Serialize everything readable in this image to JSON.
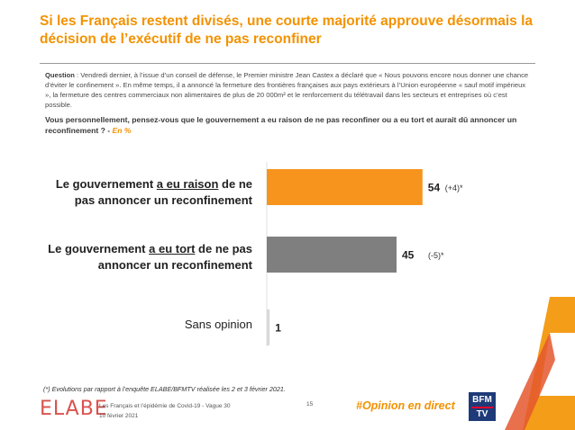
{
  "header": {
    "title": "Si les Français restent divisés, une courte majorité approuve désormais la décision de l’exécutif de ne pas reconfiner"
  },
  "question": {
    "label": "Question",
    "text": " : Vendredi dernier, à l’issue d’un conseil de défense, le Premier ministre Jean Castex a déclaré que « Nous pouvons encore nous donner une chance d’éviter le confinement ». En même temps, il a annoncé la fermeture des frontières françaises aux pays extérieurs à l’Union européenne « sauf motif impérieux », la fermeture des centres commerciaux non alimentaires de plus de 20 000m² et le renforcement du télétravail dans les secteurs et entreprises où c’est possible.",
    "prompt": "Vous personnellement, pensez-vous que le gouvernement a eu raison de ne pas reconfiner ou a eu tort et aurait dû annoncer un reconfinement ? - ",
    "unit": "En %"
  },
  "chart_data": {
    "type": "bar",
    "orientation": "horizontal",
    "categories": [
      "Le gouvernement a eu raison de ne pas annoncer un reconfinement",
      "Le gouvernement a eu tort de ne pas annoncer un reconfinement",
      "Sans opinion"
    ],
    "category_parts": [
      {
        "pre": "Le gouvernement ",
        "em": "a eu raison",
        "post": " de ne pas annoncer un reconfinement"
      },
      {
        "pre": "Le gouvernement ",
        "em": "a eu tort",
        "post": " de ne pas annoncer un reconfinement"
      },
      {
        "pre": "Sans opinion",
        "em": "",
        "post": ""
      }
    ],
    "values": [
      54,
      45,
      1
    ],
    "value_labels": [
      "54",
      "45",
      "1"
    ],
    "changes": [
      "(+4)*",
      "(-5)*",
      ""
    ],
    "colors": [
      "#f7941d",
      "#7f7f7f",
      "#d9d9d9"
    ],
    "xlim": [
      0,
      100
    ],
    "grid": false
  },
  "footer": {
    "footnote": "(*) Evolutions par rapport à l’enquête ELABE/BFMTV réalisée les 2 et 3 février 2021.",
    "logo_text": "ELABE",
    "survey_title": "Les Français et l’épidémie de Covid-19 - Vague 30",
    "date": "10 février 2021",
    "page": "15",
    "hashtag": "#Opinion en direct",
    "partner_top": "BFM",
    "partner_bottom": "TV"
  }
}
